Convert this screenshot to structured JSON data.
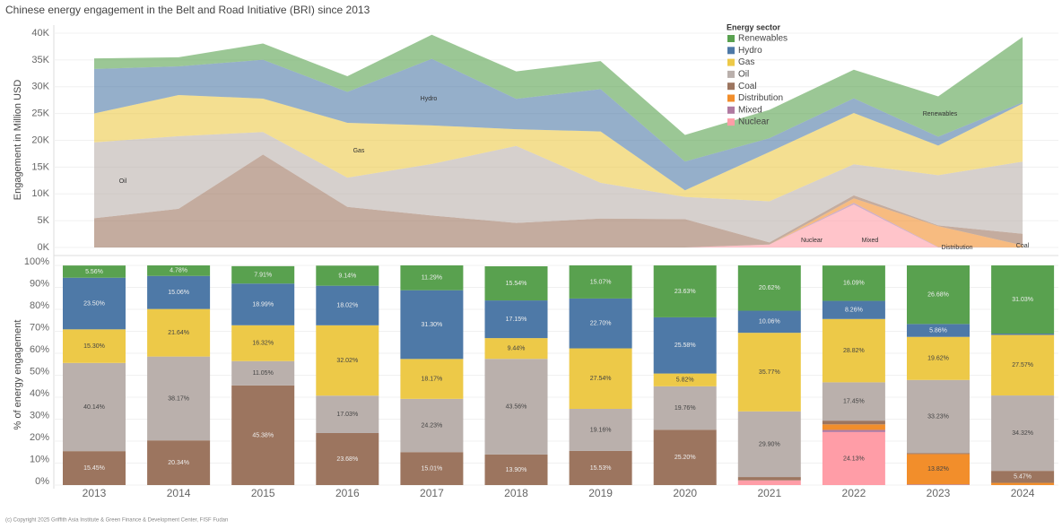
{
  "chart_data": [
    {
      "type": "area",
      "title": "Chinese energy engagement in the Belt and Road Initiative (BRI) since 2013",
      "ylabel": "Engagement in Million USD",
      "ylim": [
        0,
        40000
      ],
      "yticks": [
        {
          "value": 0,
          "label": "0K"
        },
        {
          "value": 5000,
          "label": "5K"
        },
        {
          "value": 10000,
          "label": "10K"
        },
        {
          "value": 15000,
          "label": "15K"
        },
        {
          "value": 20000,
          "label": "20K"
        },
        {
          "value": 25000,
          "label": "25K"
        },
        {
          "value": 30000,
          "label": "30K"
        },
        {
          "value": 35000,
          "label": "35K"
        },
        {
          "value": 40000,
          "label": "40K"
        }
      ],
      "legend_title": "Energy sector",
      "series": [
        {
          "name": "Nuclear",
          "color": "#ff9da7",
          "values": [
            0,
            0,
            0,
            0,
            0,
            0,
            0,
            0,
            553,
            8011,
            0,
            0
          ]
        },
        {
          "name": "Mixed",
          "color": "#b07aa1",
          "values": [
            0,
            0,
            0,
            0,
            0,
            0,
            0,
            0,
            0,
            332,
            82,
            0
          ]
        },
        {
          "name": "Distribution",
          "color": "#f28e2b",
          "values": [
            0,
            0,
            0,
            0,
            0,
            0,
            0,
            0,
            0,
            830,
            3897,
            393
          ]
        },
        {
          "name": "Coal",
          "color": "#9c755f",
          "values": [
            5454,
            7221,
            17335,
            7578,
            5959,
            4587,
            5404,
            5292,
            386,
            564,
            141,
            2150
          ]
        },
        {
          "name": "Oil",
          "color": "#bab0ac",
          "values": [
            14169,
            13550,
            4221,
            5450,
            9619,
            14375,
            6668,
            4150,
            7684,
            5793,
            9371,
            13488
          ]
        },
        {
          "name": "Gas",
          "color": "#edc948",
          "values": [
            5401,
            7682,
            6234,
            10246,
            7213,
            3115,
            9584,
            1222,
            9193,
            9568,
            5533,
            10835
          ]
        },
        {
          "name": "Hydro",
          "color": "#4e79a7",
          "values": [
            8296,
            5346,
            7254,
            5766,
            12426,
            5660,
            7900,
            5372,
            2585,
            2742,
            1653,
            236
          ]
        },
        {
          "name": "Renewables",
          "color": "#59a14f",
          "values": [
            1963,
            1697,
            3022,
            2925,
            4482,
            5128,
            5244,
            4962,
            5299,
            5342,
            7524,
            12195
          ]
        }
      ],
      "annotations": [
        "Oil",
        "Gas",
        "Hydro",
        "Renewables",
        "Nuclear",
        "Mixed",
        "Distribution",
        "Coal"
      ]
    },
    {
      "type": "bar",
      "stacked": true,
      "ylabel": "% of energy engagement",
      "categories": [
        "2013",
        "2014",
        "2015",
        "2016",
        "2017",
        "2018",
        "2019",
        "2020",
        "2021",
        "2022",
        "2023",
        "2024"
      ],
      "ylim": [
        0,
        100
      ],
      "yticks": [
        {
          "value": 0,
          "label": "0%"
        },
        {
          "value": 10,
          "label": "10%"
        },
        {
          "value": 20,
          "label": "20%"
        },
        {
          "value": 30,
          "label": "30%"
        },
        {
          "value": 40,
          "label": "40%"
        },
        {
          "value": 50,
          "label": "50%"
        },
        {
          "value": 60,
          "label": "60%"
        },
        {
          "value": 70,
          "label": "70%"
        },
        {
          "value": 80,
          "label": "80%"
        },
        {
          "value": 90,
          "label": "90%"
        },
        {
          "value": 100,
          "label": "100%"
        }
      ],
      "series": [
        {
          "color": "#ff9da7",
          "values": [
            0,
            0,
            0,
            0,
            0,
            0,
            0,
            0,
            2.15,
            24.13,
            0,
            0
          ],
          "value_labels": [
            null,
            null,
            null,
            null,
            null,
            null,
            null,
            null,
            null,
            "24.13%",
            null,
            null
          ]
        },
        {
          "color": "#b07aa1",
          "values": [
            0,
            0,
            0,
            0,
            0,
            0,
            0,
            0,
            0,
            1.0,
            0.29,
            0
          ],
          "value_labels": [
            null,
            null,
            null,
            null,
            null,
            null,
            null,
            null,
            null,
            null,
            null,
            null
          ]
        },
        {
          "color": "#f28e2b",
          "values": [
            0,
            0,
            0,
            0,
            0,
            0,
            0,
            0,
            0,
            2.5,
            13.82,
            1.0
          ],
          "value_labels": [
            null,
            null,
            null,
            null,
            null,
            null,
            null,
            null,
            null,
            null,
            "13.82%",
            null
          ]
        },
        {
          "color": "#9c755f",
          "values": [
            15.45,
            20.34,
            45.38,
            23.68,
            15.01,
            13.9,
            15.53,
            25.2,
            1.5,
            1.7,
            0.5,
            5.47
          ],
          "value_labels": [
            "15.45%",
            "20.34%",
            "45.38%",
            "23.68%",
            "15.01%",
            "13.90%",
            "15.53%",
            "25.20%",
            null,
            null,
            null,
            "5.47%"
          ]
        },
        {
          "color": "#bab0ac",
          "values": [
            40.14,
            38.17,
            11.05,
            17.03,
            24.23,
            43.56,
            19.16,
            19.76,
            29.9,
            17.45,
            33.23,
            34.32
          ],
          "value_labels": [
            "40.14%",
            "38.17%",
            "11.05%",
            "17.03%",
            "24.23%",
            "43.56%",
            "19.16%",
            "19.76%",
            "29.90%",
            "17.45%",
            "33.23%",
            "34.32%"
          ]
        },
        {
          "color": "#edc948",
          "values": [
            15.3,
            21.64,
            16.32,
            32.02,
            18.17,
            9.44,
            27.54,
            5.82,
            35.77,
            28.82,
            19.62,
            27.57
          ],
          "value_labels": [
            "15.30%",
            "21.64%",
            "16.32%",
            "32.02%",
            "18.17%",
            "9.44%",
            "27.54%",
            "5.82%",
            "35.77%",
            "28.82%",
            "19.62%",
            "27.57%"
          ]
        },
        {
          "color": "#4e79a7",
          "values": [
            23.5,
            15.06,
            18.99,
            18.02,
            31.3,
            17.15,
            22.7,
            25.58,
            10.06,
            8.26,
            5.86,
            0.6
          ],
          "value_labels": [
            "23.50%",
            "15.06%",
            "18.99%",
            "18.02%",
            "31.30%",
            "17.15%",
            "22.70%",
            "25.58%",
            "10.06%",
            "8.26%",
            "5.86%",
            null
          ]
        },
        {
          "color": "#59a14f",
          "values": [
            5.56,
            4.78,
            7.91,
            9.14,
            11.29,
            15.54,
            15.07,
            23.63,
            20.62,
            16.09,
            26.68,
            31.03
          ],
          "value_labels": [
            "5.56%",
            "4.78%",
            "7.91%",
            "9.14%",
            "11.29%",
            "15.54%",
            "15.07%",
            "23.63%",
            "20.62%",
            "16.09%",
            "26.68%",
            "31.03%"
          ]
        }
      ]
    }
  ],
  "footer": "(c) Copyright 2025 Griffith Asia Institute & Green Finance & Development Center, FISF Fudan"
}
